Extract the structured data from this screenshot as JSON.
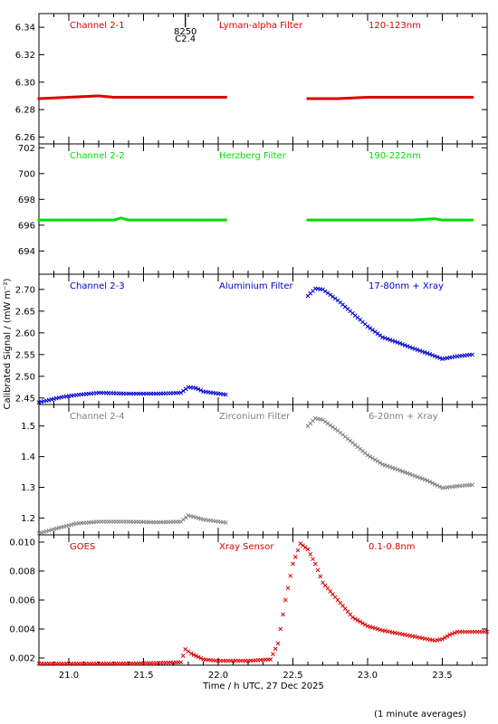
{
  "x_axis": {
    "label": "Time / h UTC, 27 Dec 2025",
    "range": [
      20.8,
      23.8
    ],
    "ticks": [
      "21.0",
      "21.5",
      "22.0",
      "22.5",
      "23.0",
      "23.5"
    ]
  },
  "y_axis_label": "Calibrated Signal / (mW m⁻²)",
  "footnote": "(1 minute averages)",
  "marker": {
    "time": 21.78,
    "label1": "8250",
    "label2": "C2.4"
  },
  "panels": [
    {
      "channel": "Channel 2-1",
      "filter": "Lyman-alpha Filter",
      "band": "120-123nm",
      "color": "#dd0000"
    },
    {
      "channel": "Channel 2-2",
      "filter": "Herzberg Filter",
      "band": "190-222nm",
      "color": "#00dd00"
    },
    {
      "channel": "Channel 2-3",
      "filter": "Aluminium Filter",
      "band": "17-80nm + Xray",
      "color": "#0000cc"
    },
    {
      "channel": "Channel 2-4",
      "filter": "Zirconium Filter",
      "band": "6-20nm + Xray",
      "color": "#808080"
    },
    {
      "channel": "GOES",
      "filter": "Xray Sensor",
      "band": "0.1-0.8nm",
      "color": "#dd0000"
    }
  ],
  "chart_data": [
    {
      "type": "scatter",
      "marker_style": "dot",
      "ylim": [
        6.255,
        6.35
      ],
      "yticks": [
        "6.26",
        "6.28",
        "6.30",
        "6.32",
        "6.34"
      ],
      "ytick_values": [
        6.26,
        6.28,
        6.3,
        6.32,
        6.34
      ],
      "series": [
        {
          "segments": [
            {
              "x": [
                20.8,
                21.0,
                21.2,
                21.3,
                21.5,
                21.7,
                22.0,
                22.05
              ],
              "y": [
                6.288,
                6.289,
                6.29,
                6.289,
                6.289,
                6.289,
                6.289,
                6.289
              ]
            },
            {
              "x": [
                22.6,
                22.8,
                23.0,
                23.2,
                23.4,
                23.6,
                23.7
              ],
              "y": [
                6.288,
                6.288,
                6.289,
                6.289,
                6.289,
                6.289,
                6.289
              ]
            }
          ]
        }
      ]
    },
    {
      "type": "scatter",
      "marker_style": "dot",
      "ylim": [
        692.2,
        702.3
      ],
      "yticks": [
        "694",
        "696",
        "698",
        "700",
        "702"
      ],
      "ytick_values": [
        694,
        696,
        698,
        700,
        702
      ],
      "series": [
        {
          "segments": [
            {
              "x": [
                20.8,
                21.0,
                21.3,
                21.35,
                21.4,
                21.7,
                22.05
              ],
              "y": [
                696.4,
                696.4,
                696.4,
                696.55,
                696.4,
                696.4,
                696.4
              ]
            },
            {
              "x": [
                22.6,
                22.8,
                23.0,
                23.3,
                23.45,
                23.5,
                23.7
              ],
              "y": [
                696.4,
                696.4,
                696.4,
                696.4,
                696.5,
                696.4,
                696.4
              ]
            }
          ]
        }
      ]
    },
    {
      "type": "scatter",
      "marker_style": "x",
      "ylim": [
        2.435,
        2.735
      ],
      "yticks": [
        "2.45",
        "2.50",
        "2.55",
        "2.60",
        "2.65",
        "2.70"
      ],
      "ytick_values": [
        2.45,
        2.5,
        2.55,
        2.6,
        2.65,
        2.7
      ],
      "series": [
        {
          "segments": [
            {
              "x": [
                20.8,
                20.95,
                21.05,
                21.2,
                21.4,
                21.6,
                21.75,
                21.8,
                21.85,
                21.9,
                22.05
              ],
              "y": [
                2.44,
                2.452,
                2.457,
                2.462,
                2.46,
                2.46,
                2.462,
                2.475,
                2.473,
                2.465,
                2.458
              ]
            },
            {
              "x": [
                22.6,
                22.65,
                22.7,
                22.8,
                22.9,
                23.0,
                23.1,
                23.2,
                23.3,
                23.4,
                23.5,
                23.6,
                23.7
              ],
              "y": [
                2.685,
                2.702,
                2.7,
                2.675,
                2.645,
                2.615,
                2.59,
                2.578,
                2.565,
                2.553,
                2.54,
                2.546,
                2.55
              ]
            }
          ]
        }
      ]
    },
    {
      "type": "scatter",
      "marker_style": "x",
      "ylim": [
        1.145,
        1.57
      ],
      "yticks": [
        "1.2",
        "1.3",
        "1.4",
        "1.5"
      ],
      "ytick_values": [
        1.2,
        1.3,
        1.4,
        1.5
      ],
      "series": [
        {
          "segments": [
            {
              "x": [
                20.8,
                20.95,
                21.05,
                21.2,
                21.4,
                21.6,
                21.75,
                21.8,
                21.85,
                21.9,
                22.05
              ],
              "y": [
                1.15,
                1.17,
                1.182,
                1.188,
                1.188,
                1.186,
                1.188,
                1.208,
                1.202,
                1.195,
                1.185
              ]
            },
            {
              "x": [
                22.6,
                22.65,
                22.7,
                22.8,
                22.9,
                23.0,
                23.1,
                23.2,
                23.3,
                23.4,
                23.5,
                23.6,
                23.7
              ],
              "y": [
                1.5,
                1.525,
                1.52,
                1.485,
                1.445,
                1.405,
                1.375,
                1.358,
                1.34,
                1.322,
                1.298,
                1.304,
                1.308
              ]
            }
          ]
        }
      ]
    },
    {
      "type": "scatter",
      "marker_style": "x",
      "ylim": [
        0.0015,
        0.0105
      ],
      "yticks": [
        "0.002",
        "0.004",
        "0.006",
        "0.008",
        "0.010"
      ],
      "ytick_values": [
        0.002,
        0.004,
        0.006,
        0.008,
        0.01
      ],
      "series": [
        {
          "segments": [
            {
              "x": [
                20.8,
                21.0,
                21.3,
                21.6,
                21.75,
                21.78,
                21.82,
                21.9,
                22.0,
                22.2,
                22.35,
                22.4,
                22.45,
                22.5,
                22.55,
                22.6,
                22.65,
                22.7,
                22.8,
                22.9,
                23.0,
                23.1,
                23.2,
                23.3,
                23.45,
                23.5,
                23.55,
                23.6,
                23.7,
                23.8
              ],
              "y": [
                0.0016,
                0.0016,
                0.0016,
                0.00165,
                0.0017,
                0.0026,
                0.0023,
                0.0019,
                0.0018,
                0.0018,
                0.0019,
                0.003,
                0.006,
                0.0085,
                0.0099,
                0.0095,
                0.0085,
                0.0072,
                0.006,
                0.0048,
                0.0042,
                0.0039,
                0.0037,
                0.0035,
                0.0032,
                0.0033,
                0.0036,
                0.0038,
                0.0038,
                0.0038
              ]
            }
          ]
        }
      ]
    }
  ]
}
